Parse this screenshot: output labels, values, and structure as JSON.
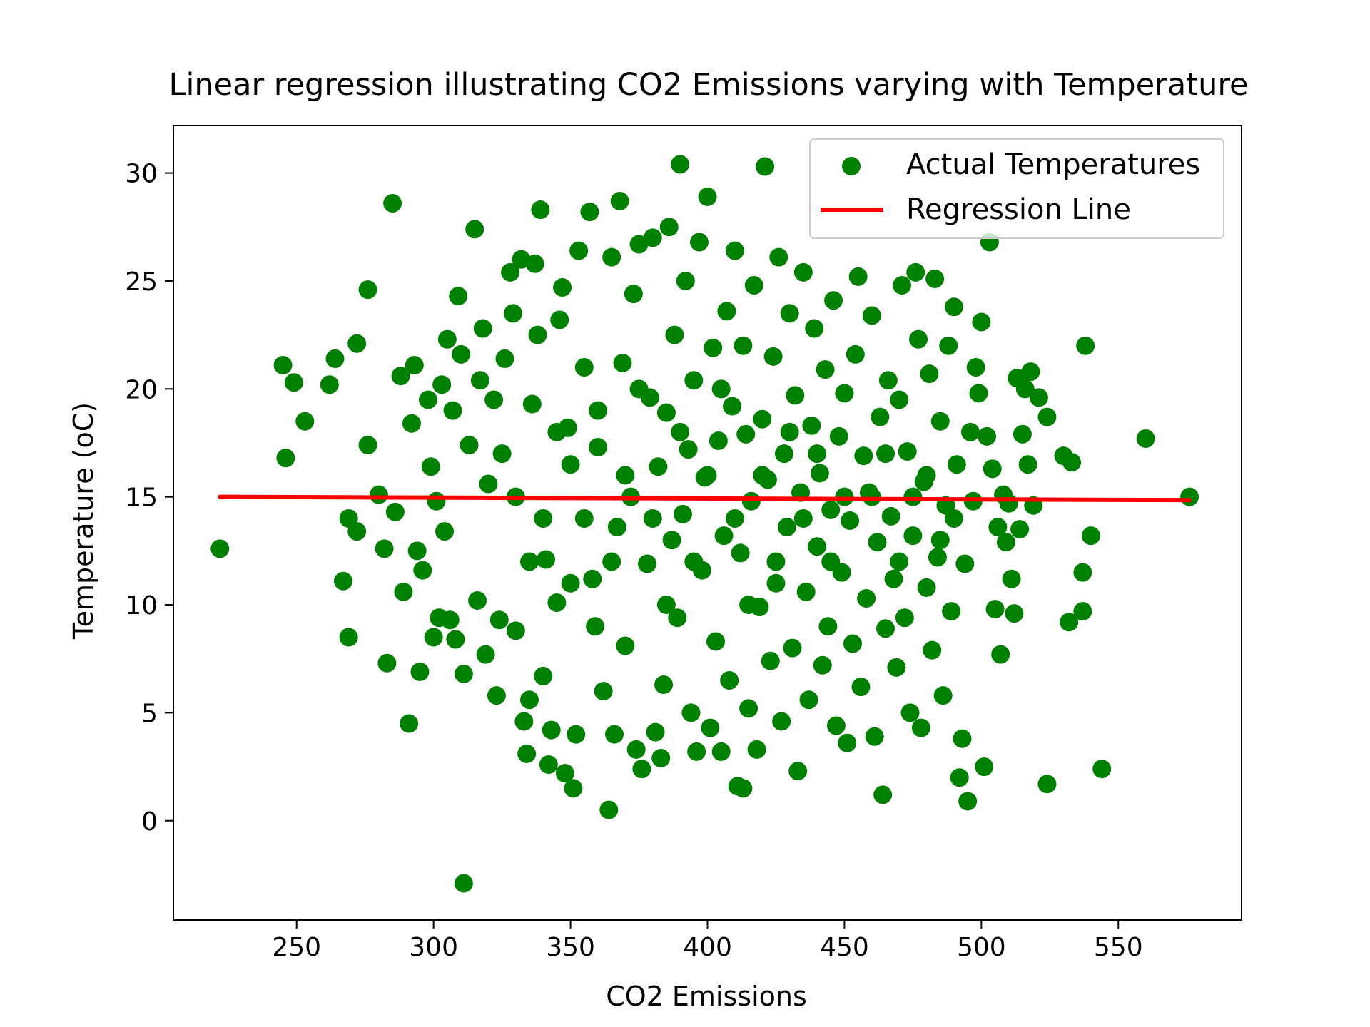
{
  "chart_data": {
    "type": "scatter",
    "title": "Linear regression illustrating CO2 Emissions varying with Temperature",
    "xlabel": "CO2 Emissions",
    "ylabel": "Temperature (oC)",
    "xlim": [
      205,
      595
    ],
    "ylim": [
      -4.6,
      32.2
    ],
    "xticks": [
      250,
      300,
      350,
      400,
      450,
      500,
      550
    ],
    "yticks": [
      0,
      5,
      10,
      15,
      20,
      25,
      30
    ],
    "grid": false,
    "legend": {
      "position": "upper-right",
      "entries": [
        "Actual Temperatures",
        "Regression Line"
      ]
    },
    "colors": {
      "points": "#008000",
      "line": "#ff0000"
    },
    "series": [
      {
        "name": "Actual Temperatures",
        "kind": "scatter",
        "points": [
          [
            222,
            12.6
          ],
          [
            245,
            21.1
          ],
          [
            246,
            16.8
          ],
          [
            249,
            20.3
          ],
          [
            253,
            18.5
          ],
          [
            262,
            20.2
          ],
          [
            264,
            21.4
          ],
          [
            267,
            11.1
          ],
          [
            269,
            8.5
          ],
          [
            269,
            14.0
          ],
          [
            272,
            13.4
          ],
          [
            272,
            22.1
          ],
          [
            276,
            24.6
          ],
          [
            276,
            17.4
          ],
          [
            280,
            15.1
          ],
          [
            282,
            12.6
          ],
          [
            283,
            7.3
          ],
          [
            285,
            28.6
          ],
          [
            286,
            14.3
          ],
          [
            288,
            20.6
          ],
          [
            289,
            10.6
          ],
          [
            291,
            4.5
          ],
          [
            292,
            18.4
          ],
          [
            293,
            21.1
          ],
          [
            294,
            12.5
          ],
          [
            295,
            6.9
          ],
          [
            296,
            11.6
          ],
          [
            298,
            19.5
          ],
          [
            299,
            16.4
          ],
          [
            300,
            8.5
          ],
          [
            301,
            14.8
          ],
          [
            302,
            9.4
          ],
          [
            303,
            20.2
          ],
          [
            304,
            13.4
          ],
          [
            305,
            22.3
          ],
          [
            306,
            9.3
          ],
          [
            307,
            19.0
          ],
          [
            308,
            8.4
          ],
          [
            309,
            24.3
          ],
          [
            310,
            21.6
          ],
          [
            311,
            6.8
          ],
          [
            311,
            -2.9
          ],
          [
            313,
            17.4
          ],
          [
            315,
            27.4
          ],
          [
            316,
            10.2
          ],
          [
            317,
            20.4
          ],
          [
            318,
            22.8
          ],
          [
            319,
            7.7
          ],
          [
            320,
            15.6
          ],
          [
            322,
            19.5
          ],
          [
            323,
            5.8
          ],
          [
            324,
            9.3
          ],
          [
            326,
            21.4
          ],
          [
            328,
            25.4
          ],
          [
            329,
            23.5
          ],
          [
            330,
            8.8
          ],
          [
            332,
            26.0
          ],
          [
            333,
            4.6
          ],
          [
            334,
            3.1
          ],
          [
            335,
            5.6
          ],
          [
            336,
            19.3
          ],
          [
            337,
            25.8
          ],
          [
            338,
            22.5
          ],
          [
            339,
            28.3
          ],
          [
            340,
            6.7
          ],
          [
            341,
            12.1
          ],
          [
            342,
            2.6
          ],
          [
            343,
            4.2
          ],
          [
            345,
            10.1
          ],
          [
            346,
            23.2
          ],
          [
            347,
            24.7
          ],
          [
            348,
            2.2
          ],
          [
            349,
            18.2
          ],
          [
            350,
            16.5
          ],
          [
            351,
            1.5
          ],
          [
            352,
            4.0
          ],
          [
            353,
            26.4
          ],
          [
            355,
            21.0
          ],
          [
            357,
            28.2
          ],
          [
            358,
            11.2
          ],
          [
            359,
            9.0
          ],
          [
            360,
            17.3
          ],
          [
            362,
            6.0
          ],
          [
            364,
            0.5
          ],
          [
            365,
            26.1
          ],
          [
            366,
            4.0
          ],
          [
            367,
            13.6
          ],
          [
            368,
            28.7
          ],
          [
            369,
            21.2
          ],
          [
            370,
            8.1
          ],
          [
            372,
            15.0
          ],
          [
            373,
            24.4
          ],
          [
            374,
            3.3
          ],
          [
            375,
            26.7
          ],
          [
            376,
            2.4
          ],
          [
            378,
            11.9
          ],
          [
            379,
            19.6
          ],
          [
            380,
            27.0
          ],
          [
            381,
            4.1
          ],
          [
            382,
            16.4
          ],
          [
            383,
            2.9
          ],
          [
            384,
            6.3
          ],
          [
            385,
            18.9
          ],
          [
            386,
            27.5
          ],
          [
            387,
            13.0
          ],
          [
            388,
            22.5
          ],
          [
            389,
            9.4
          ],
          [
            390,
            30.4
          ],
          [
            391,
            14.2
          ],
          [
            392,
            25.0
          ],
          [
            393,
            17.2
          ],
          [
            394,
            5.0
          ],
          [
            395,
            20.4
          ],
          [
            396,
            3.2
          ],
          [
            397,
            26.8
          ],
          [
            398,
            11.6
          ],
          [
            399,
            15.9
          ],
          [
            400,
            28.9
          ],
          [
            401,
            4.3
          ],
          [
            402,
            21.9
          ],
          [
            403,
            8.3
          ],
          [
            404,
            17.6
          ],
          [
            405,
            3.2
          ],
          [
            406,
            13.2
          ],
          [
            407,
            23.6
          ],
          [
            408,
            6.5
          ],
          [
            409,
            19.2
          ],
          [
            410,
            26.4
          ],
          [
            411,
            1.6
          ],
          [
            412,
            12.4
          ],
          [
            413,
            1.5
          ],
          [
            413,
            22.0
          ],
          [
            414,
            17.9
          ],
          [
            415,
            5.2
          ],
          [
            416,
            14.8
          ],
          [
            417,
            24.8
          ],
          [
            418,
            3.3
          ],
          [
            419,
            9.9
          ],
          [
            420,
            18.6
          ],
          [
            421,
            30.3
          ],
          [
            422,
            15.8
          ],
          [
            423,
            7.4
          ],
          [
            424,
            21.5
          ],
          [
            425,
            11.0
          ],
          [
            426,
            26.1
          ],
          [
            427,
            4.6
          ],
          [
            428,
            17.0
          ],
          [
            429,
            13.6
          ],
          [
            430,
            23.5
          ],
          [
            431,
            8.0
          ],
          [
            432,
            19.7
          ],
          [
            433,
            2.3
          ],
          [
            434,
            15.2
          ],
          [
            435,
            25.4
          ],
          [
            436,
            10.6
          ],
          [
            437,
            5.6
          ],
          [
            438,
            18.3
          ],
          [
            439,
            22.8
          ],
          [
            440,
            12.7
          ],
          [
            441,
            16.1
          ],
          [
            442,
            7.2
          ],
          [
            443,
            20.9
          ],
          [
            444,
            9.0
          ],
          [
            445,
            14.4
          ],
          [
            446,
            24.1
          ],
          [
            447,
            4.4
          ],
          [
            448,
            17.8
          ],
          [
            449,
            11.5
          ],
          [
            450,
            19.8
          ],
          [
            451,
            3.6
          ],
          [
            452,
            13.9
          ],
          [
            453,
            8.2
          ],
          [
            454,
            21.6
          ],
          [
            455,
            25.2
          ],
          [
            456,
            6.2
          ],
          [
            457,
            16.9
          ],
          [
            458,
            10.3
          ],
          [
            459,
            15.2
          ],
          [
            460,
            23.4
          ],
          [
            461,
            3.9
          ],
          [
            462,
            12.9
          ],
          [
            463,
            18.7
          ],
          [
            464,
            1.2
          ],
          [
            465,
            8.9
          ],
          [
            466,
            20.4
          ],
          [
            467,
            14.1
          ],
          [
            468,
            11.2
          ],
          [
            469,
            7.1
          ],
          [
            470,
            19.5
          ],
          [
            471,
            24.8
          ],
          [
            472,
            9.4
          ],
          [
            473,
            17.1
          ],
          [
            474,
            5.0
          ],
          [
            475,
            13.2
          ],
          [
            476,
            25.4
          ],
          [
            477,
            22.3
          ],
          [
            478,
            4.3
          ],
          [
            479,
            15.7
          ],
          [
            480,
            10.8
          ],
          [
            481,
            20.7
          ],
          [
            482,
            7.9
          ],
          [
            483,
            25.1
          ],
          [
            484,
            12.2
          ],
          [
            485,
            18.5
          ],
          [
            486,
            5.8
          ],
          [
            487,
            14.6
          ],
          [
            488,
            22.0
          ],
          [
            489,
            9.7
          ],
          [
            490,
            23.8
          ],
          [
            491,
            16.5
          ],
          [
            492,
            2.0
          ],
          [
            493,
            3.8
          ],
          [
            494,
            11.9
          ],
          [
            495,
            0.9
          ],
          [
            496,
            18.0
          ],
          [
            497,
            14.8
          ],
          [
            498,
            21.0
          ],
          [
            499,
            19.8
          ],
          [
            500,
            23.1
          ],
          [
            501,
            2.5
          ],
          [
            502,
            17.8
          ],
          [
            503,
            26.8
          ],
          [
            504,
            16.3
          ],
          [
            505,
            9.8
          ],
          [
            506,
            13.6
          ],
          [
            507,
            7.7
          ],
          [
            508,
            15.1
          ],
          [
            509,
            12.9
          ],
          [
            510,
            14.7
          ],
          [
            511,
            11.2
          ],
          [
            512,
            9.6
          ],
          [
            513,
            20.5
          ],
          [
            514,
            13.5
          ],
          [
            515,
            17.9
          ],
          [
            516,
            20.0
          ],
          [
            517,
            16.5
          ],
          [
            518,
            20.8
          ],
          [
            519,
            14.6
          ],
          [
            521,
            19.6
          ],
          [
            524,
            1.7
          ],
          [
            524,
            18.7
          ],
          [
            530,
            16.9
          ],
          [
            532,
            9.2
          ],
          [
            533,
            16.6
          ],
          [
            537,
            9.7
          ],
          [
            537,
            11.5
          ],
          [
            538,
            22.0
          ],
          [
            540,
            13.2
          ],
          [
            544,
            2.4
          ],
          [
            560,
            17.7
          ],
          [
            576,
            15.0
          ],
          [
            355,
            14.0
          ],
          [
            360,
            19.0
          ],
          [
            365,
            12.0
          ],
          [
            370,
            16.0
          ],
          [
            375,
            20.0
          ],
          [
            380,
            14.0
          ],
          [
            385,
            10.0
          ],
          [
            390,
            18.0
          ],
          [
            395,
            12.0
          ],
          [
            400,
            16.0
          ],
          [
            405,
            20.0
          ],
          [
            410,
            14.0
          ],
          [
            415,
            10.0
          ],
          [
            420,
            16.0
          ],
          [
            425,
            12.0
          ],
          [
            430,
            18.0
          ],
          [
            435,
            14.0
          ],
          [
            440,
            17.0
          ],
          [
            445,
            12.0
          ],
          [
            450,
            15.0
          ],
          [
            340,
            14.0
          ],
          [
            345,
            18.0
          ],
          [
            350,
            11.0
          ],
          [
            330,
            15.0
          ],
          [
            335,
            12.0
          ],
          [
            325,
            17.0
          ],
          [
            460,
            15.0
          ],
          [
            465,
            17.0
          ],
          [
            470,
            12.0
          ],
          [
            475,
            15.0
          ],
          [
            480,
            16.0
          ],
          [
            485,
            13.0
          ],
          [
            490,
            14.0
          ]
        ]
      },
      {
        "name": "Regression Line",
        "kind": "line",
        "points": [
          [
            222,
            15.0
          ],
          [
            576,
            14.85
          ]
        ]
      }
    ]
  }
}
